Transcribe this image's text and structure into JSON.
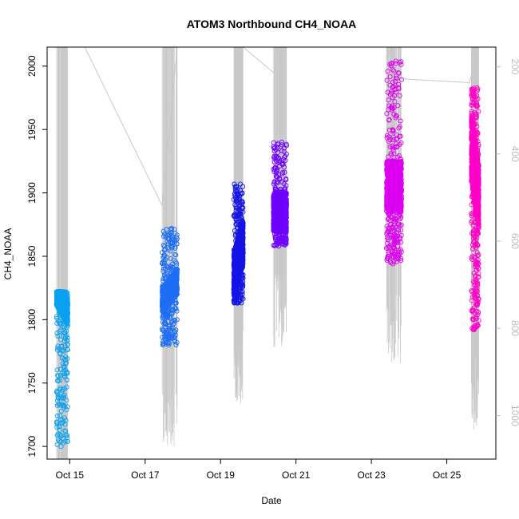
{
  "chart_data": {
    "type": "scatter",
    "title": "ATOM3 Northbound CH4_NOAA",
    "xlabel": "Date",
    "ylabel": "CH4_NOAA",
    "x_unit": "days of October",
    "x_ticks": [
      {
        "value": 15,
        "label": "Oct 15"
      },
      {
        "value": 17,
        "label": "Oct 17"
      },
      {
        "value": 19,
        "label": "Oct 19"
      },
      {
        "value": 21,
        "label": "Oct 21"
      },
      {
        "value": 23,
        "label": "Oct 23"
      },
      {
        "value": 25,
        "label": "Oct 25"
      }
    ],
    "xlim": [
      14.4,
      26.3
    ],
    "ylim": [
      1690,
      2015
    ],
    "y_ticks": [
      1700,
      1750,
      1800,
      1850,
      1900,
      1950,
      2000
    ],
    "y2_ticks": [
      200,
      400,
      600,
      800,
      1000
    ],
    "y2lim": [
      1100,
      155
    ],
    "y2_reversed": true,
    "grid": false,
    "legend": "none",
    "line_color": "#c8c8c8",
    "series": [
      {
        "color": "#0aa0f0",
        "x_range": [
          14.65,
          14.95
        ],
        "core": [
          1795,
          1822
        ],
        "tail_low": 1700,
        "tail_high": 1822,
        "seg_shape": "descend"
      },
      {
        "color": "#1e6ef5",
        "x_range": [
          17.45,
          17.85
        ],
        "core": [
          1815,
          1840
        ],
        "tail_low": 1780,
        "tail_high": 1872,
        "seg_shape": "ascend"
      },
      {
        "color": "#1414e6",
        "x_range": [
          19.35,
          19.6
        ],
        "core": [
          1835,
          1880
        ],
        "tail_low": 1813,
        "tail_high": 1907,
        "seg_shape": "ascend"
      },
      {
        "color": "#6e00ff",
        "x_range": [
          20.4,
          20.75
        ],
        "core": [
          1865,
          1905
        ],
        "tail_low": 1858,
        "tail_high": 1940,
        "seg_shape": "flat"
      },
      {
        "color": "#dc00f0",
        "x_range": [
          23.4,
          23.8
        ],
        "core": [
          1880,
          1930
        ],
        "tail_low": 1844,
        "tail_high": 2004,
        "seg_shape": "flat"
      },
      {
        "color": "#ff00c8",
        "x_range": [
          25.65,
          25.85
        ],
        "core": [
          1870,
          1935
        ],
        "tail_low": 1792,
        "tail_high": 1983,
        "seg_shape": "descend"
      }
    ]
  }
}
